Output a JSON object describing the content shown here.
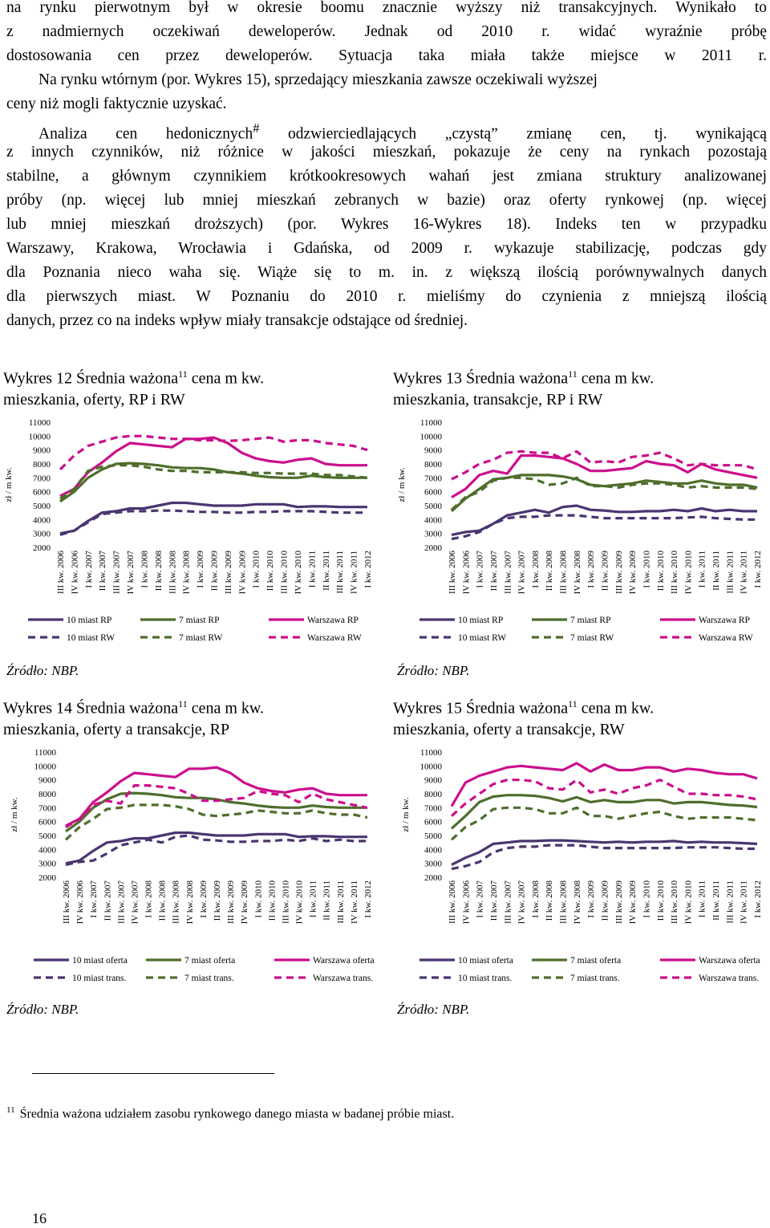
{
  "paragraph_1": {
    "lines": [
      "na rynku pierwotnym był w okresie boomu znacznie wyższy niż transakcyjnych. Wynikało to",
      "z nadmiernych oczekiwań deweloperów. Jednak od 2010 r. widać wyraźnie próbę",
      "dostosowania cen przez deweloperów. Sytuacja taka miała także miejsce w 2011 r.",
      "Na rynku wtórnym (por. Wykres 15), sprzedający mieszkania zawsze oczekiwali wyższej",
      "ceny niż mogli faktycznie uzyskać."
    ]
  },
  "paragraph_2": {
    "line1_a": "Analiza cen hedonicznych",
    "line1_sup": "#",
    "line1_b": " odzwierciedlających „czystą” zmianę cen, tj. wynikającą",
    "lines": [
      "z innych czynników, niż różnice w jakości mieszkań, pokazuje że ceny na rynkach pozostają",
      "stabilne, a głównym czynnikiem krótkookresowych wahań jest zmiana struktury analizowanej",
      "próby (np. więcej lub mniej mieszkań zebranych w bazie) oraz oferty rynkowej (np. więcej",
      "lub mniej mieszkań droższych) (por. Wykres 16-Wykres 18). Indeks ten w przypadku",
      "Warszawy, Krakowa, Wrocławia i Gdańska, od 2009 r. wykazuje stabilizację, podczas gdy",
      "dla Poznania nieco waha się. Wiąże się to m. in. z większą ilością porównywalnych danych",
      "dla pierwszych miast. W Poznaniu do 2010 r. mieliśmy do czynienia z mniejszą ilością",
      "danych, przez co na indeks wpływ miały transakcje odstające od średniej."
    ]
  },
  "footnote": {
    "number": "11",
    "text": "Średnia ważona udziałem zasobu rynkowego danego miasta w badanej próbie miast."
  },
  "page_number": "16",
  "colors": {
    "ten_cities": "#4a3570",
    "seven_cities": "#4e6e2c",
    "warszawa": "#cc0f8c"
  },
  "chart_data": [
    {
      "type": "line",
      "title_a": "Wykres 12 Średnia ważona",
      "title_sup": "11",
      "title_b": " cena m kw.",
      "title_line2": "mieszkania, oferty, RP i RW",
      "source": "Źródło: NBP.",
      "ylabel": "zł / m kw.",
      "ylim": [
        2000,
        11000
      ],
      "yticks": [
        2000,
        3000,
        4000,
        5000,
        6000,
        7000,
        8000,
        9000,
        10000,
        11000
      ],
      "categories": [
        "III kw. 2006",
        "IV kw. 2006",
        "I kw. 2007",
        "II kw. 2007",
        "III kw. 2007",
        "IV kw. 2007",
        "I kw. 2008",
        "II kw. 2008",
        "III kw. 2008",
        "IV kw. 2008",
        "I kw. 2009",
        "II kw. 2009",
        "III kw. 2009",
        "IV kw. 2009",
        "I kw. 2010",
        "II kw. 2010",
        "III kw. 2010",
        "IV kw. 2010",
        "I kw. 2011",
        "II kw. 2011",
        "III kw. 2011",
        "IV kw. 2011",
        "I kw. 2012"
      ],
      "series": [
        {
          "name": "10 miast RP",
          "color": "#4a3570",
          "dashed": false,
          "values": [
            3000,
            3200,
            3900,
            4500,
            4600,
            4800,
            4800,
            5000,
            5200,
            5200,
            5100,
            5000,
            5000,
            5000,
            5100,
            5100,
            5100,
            4900,
            4950,
            4950,
            4900,
            4900,
            4900
          ]
        },
        {
          "name": "7 miast RP",
          "color": "#4e6e2c",
          "dashed": false,
          "values": [
            5300,
            6000,
            7000,
            7600,
            8000,
            8050,
            8000,
            7900,
            7750,
            7700,
            7700,
            7600,
            7400,
            7300,
            7150,
            7050,
            7000,
            7000,
            7150,
            7050,
            7000,
            7000,
            7000
          ]
        },
        {
          "name": "Warszawa RP",
          "color": "#cc0f8c",
          "dashed": false,
          "values": [
            5700,
            6200,
            7400,
            8100,
            8900,
            9500,
            9400,
            9300,
            9200,
            9800,
            9800,
            9900,
            9500,
            8800,
            8400,
            8200,
            8100,
            8300,
            8400,
            8000,
            7900,
            7900,
            7900
          ]
        },
        {
          "name": "10 miast RW",
          "color": "#4a3570",
          "dashed": true,
          "values": [
            2900,
            3200,
            3800,
            4400,
            4500,
            4600,
            4600,
            4650,
            4650,
            4600,
            4550,
            4550,
            4500,
            4500,
            4550,
            4550,
            4600,
            4600,
            4600,
            4550,
            4500,
            4500,
            4500
          ]
        },
        {
          "name": "7 miast RW",
          "color": "#4e6e2c",
          "dashed": true,
          "values": [
            5500,
            6200,
            7500,
            7800,
            7900,
            7900,
            7800,
            7600,
            7500,
            7500,
            7400,
            7400,
            7400,
            7400,
            7350,
            7350,
            7300,
            7300,
            7300,
            7200,
            7200,
            7100,
            7000
          ]
        },
        {
          "name": "Warszawa RW",
          "color": "#cc0f8c",
          "dashed": true,
          "values": [
            7600,
            8600,
            9300,
            9600,
            9900,
            10000,
            10000,
            9900,
            9800,
            9800,
            9700,
            9700,
            9650,
            9700,
            9800,
            9900,
            9600,
            9700,
            9700,
            9500,
            9400,
            9300,
            9000
          ]
        }
      ]
    },
    {
      "type": "line",
      "title_a": "Wykres 13 Średnia ważona",
      "title_sup": "11",
      "title_b": " cena m kw.",
      "title_line2": "mieszkania, transakcje, RP i RW",
      "source": "Źródło: NBP.",
      "ylabel": "zł / m kw.",
      "ylim": [
        2000,
        11000
      ],
      "yticks": [
        2000,
        3000,
        4000,
        5000,
        6000,
        7000,
        8000,
        9000,
        10000,
        11000
      ],
      "categories": [
        "III kw. 2006",
        "IV kw. 2006",
        "I kw. 2007",
        "II kw. 2007",
        "III kw. 2007",
        "IV kw. 2007",
        "I kw. 2008",
        "II kw. 2008",
        "III kw. 2008",
        "IV kw. 2008",
        "I kw. 2009",
        "II kw. 2009",
        "III kw. 2009",
        "IV kw. 2009",
        "I kw. 2010",
        "II kw. 2010",
        "III kw. 2010",
        "IV kw. 2010",
        "I kw. 2011",
        "II kw. 2011",
        "III kw. 2011",
        "IV kw. 2011",
        "I kw. 2012"
      ],
      "series": [
        {
          "name": "10 miast RP",
          "color": "#4a3570",
          "dashed": false,
          "values": [
            2900,
            3100,
            3200,
            3700,
            4300,
            4500,
            4700,
            4500,
            4900,
            5000,
            4700,
            4650,
            4550,
            4550,
            4600,
            4600,
            4700,
            4600,
            4800,
            4600,
            4700,
            4600,
            4600
          ]
        },
        {
          "name": "7 miast RP",
          "color": "#4e6e2c",
          "dashed": false,
          "values": [
            4600,
            5500,
            6200,
            6900,
            7000,
            7200,
            7200,
            7200,
            7100,
            6900,
            6500,
            6400,
            6500,
            6600,
            6800,
            6700,
            6600,
            6600,
            6800,
            6600,
            6500,
            6500,
            6300
          ]
        },
        {
          "name": "Warszawa RP",
          "color": "#cc0f8c",
          "dashed": false,
          "values": [
            5600,
            6200,
            7200,
            7500,
            7300,
            8600,
            8600,
            8500,
            8400,
            8000,
            7500,
            7500,
            7600,
            7700,
            8200,
            8000,
            7900,
            7400,
            8000,
            7600,
            7400,
            7200,
            7000
          ]
        },
        {
          "name": "10 miast RW",
          "color": "#4a3570",
          "dashed": true,
          "values": [
            2600,
            2800,
            3100,
            3700,
            4100,
            4200,
            4200,
            4300,
            4300,
            4300,
            4200,
            4100,
            4100,
            4100,
            4100,
            4100,
            4100,
            4150,
            4200,
            4100,
            4050,
            4000,
            4000
          ]
        },
        {
          "name": "7 miast RW",
          "color": "#4e6e2c",
          "dashed": true,
          "values": [
            4700,
            5600,
            6000,
            6800,
            7000,
            7000,
            6900,
            6500,
            6600,
            7000,
            6400,
            6400,
            6300,
            6500,
            6600,
            6600,
            6500,
            6300,
            6400,
            6300,
            6300,
            6300,
            6200
          ]
        },
        {
          "name": "Warszawa RW",
          "color": "#cc0f8c",
          "dashed": true,
          "values": [
            6900,
            7400,
            8000,
            8300,
            8800,
            8900,
            8800,
            8800,
            8400,
            8900,
            8100,
            8200,
            8100,
            8500,
            8600,
            8800,
            8400,
            7900,
            8000,
            7900,
            7900,
            7900,
            7600
          ]
        }
      ]
    },
    {
      "type": "line",
      "title_a": "Wykres 14 Średnia ważona",
      "title_sup": "11",
      "title_b": " cena m kw.",
      "title_line2": "mieszkania, oferty a transakcje, RP",
      "source": "Źródło: NBP.",
      "ylabel": "zł / m kw.",
      "ylim": [
        2000,
        11000
      ],
      "yticks": [
        2000,
        3000,
        4000,
        5000,
        6000,
        7000,
        8000,
        9000,
        10000,
        11000
      ],
      "categories": [
        "III kw. 2006",
        "IV kw. 2006",
        "I kw. 2007",
        "II kw. 2007",
        "III kw. 2007",
        "IV kw. 2007",
        "I kw. 2008",
        "II kw. 2008",
        "III kw. 2008",
        "IV kw. 2008",
        "I kw. 2009",
        "II kw. 2009",
        "III kw. 2009",
        "IV kw. 2009",
        "I kw. 2010",
        "II kw. 2010",
        "III kw. 2010",
        "IV kw. 2010",
        "I kw. 2011",
        "II kw. 2011",
        "III kw. 2011",
        "IV kw. 2011",
        "I kw. 2012"
      ],
      "series": [
        {
          "name": "10 miast oferta",
          "color": "#4a3570",
          "dashed": false,
          "values": [
            3000,
            3200,
            3900,
            4500,
            4600,
            4800,
            4800,
            5000,
            5200,
            5200,
            5100,
            5000,
            5000,
            5000,
            5100,
            5100,
            5100,
            4900,
            4950,
            4950,
            4900,
            4900,
            4900
          ]
        },
        {
          "name": "7 miast oferta",
          "color": "#4e6e2c",
          "dashed": false,
          "values": [
            5300,
            6000,
            7000,
            7600,
            8000,
            8050,
            8000,
            7900,
            7750,
            7700,
            7700,
            7600,
            7400,
            7300,
            7150,
            7050,
            7000,
            7000,
            7150,
            7050,
            7000,
            7000,
            7000
          ]
        },
        {
          "name": "Warszawa oferta",
          "color": "#cc0f8c",
          "dashed": false,
          "values": [
            5700,
            6200,
            7400,
            8100,
            8900,
            9500,
            9400,
            9300,
            9200,
            9800,
            9800,
            9900,
            9500,
            8800,
            8400,
            8200,
            8100,
            8300,
            8400,
            8000,
            7900,
            7900,
            7900
          ]
        },
        {
          "name": "10 miast trans.",
          "color": "#4a3570",
          "dashed": true,
          "values": [
            2900,
            3100,
            3200,
            3700,
            4300,
            4500,
            4700,
            4500,
            4900,
            5000,
            4700,
            4650,
            4550,
            4550,
            4600,
            4600,
            4700,
            4600,
            4800,
            4600,
            4700,
            4600,
            4600
          ]
        },
        {
          "name": "7 miast trans.",
          "color": "#4e6e2c",
          "dashed": true,
          "values": [
            4700,
            5600,
            6200,
            6900,
            7000,
            7200,
            7200,
            7200,
            7100,
            6900,
            6500,
            6400,
            6500,
            6600,
            6800,
            6700,
            6600,
            6600,
            6800,
            6600,
            6500,
            6500,
            6300
          ]
        },
        {
          "name": "Warszawa trans.",
          "color": "#cc0f8c",
          "dashed": true,
          "values": [
            5600,
            6200,
            7200,
            7500,
            7300,
            8600,
            8600,
            8500,
            8400,
            8000,
            7500,
            7500,
            7600,
            7700,
            8200,
            8000,
            7900,
            7400,
            8000,
            7600,
            7400,
            7200,
            7000
          ]
        }
      ]
    },
    {
      "type": "line",
      "title_a": "Wykres 15 Średnia ważona",
      "title_sup": "11",
      "title_b": " cena m kw.",
      "title_line2": "mieszkania, oferty a transakcje, RW",
      "source": "Źródło: NBP.",
      "ylabel": "zł / m kw.",
      "ylim": [
        2000,
        11000
      ],
      "yticks": [
        2000,
        3000,
        4000,
        5000,
        6000,
        7000,
        8000,
        9000,
        10000,
        11000
      ],
      "categories": [
        "III kw. 2006",
        "IV kw. 2006",
        "I kw. 2007",
        "II kw. 2007",
        "III kw. 2007",
        "IV kw. 2007",
        "I kw. 2008",
        "II kw. 2008",
        "III kw. 2008",
        "IV kw. 2008",
        "I kw. 2009",
        "II kw. 2009",
        "III kw. 2009",
        "IV kw. 2009",
        "I kw. 2010",
        "II kw. 2010",
        "III kw. 2010",
        "IV kw. 2010",
        "I kw. 2011",
        "II kw. 2011",
        "III kw. 2011",
        "IV kw. 2011",
        "I kw. 2012"
      ],
      "series": [
        {
          "name": "10 miast oferta",
          "color": "#4a3570",
          "dashed": false,
          "values": [
            2900,
            3400,
            3800,
            4400,
            4500,
            4600,
            4600,
            4650,
            4650,
            4600,
            4550,
            4500,
            4550,
            4500,
            4550,
            4550,
            4600,
            4500,
            4550,
            4500,
            4500,
            4450,
            4400
          ]
        },
        {
          "name": "7 miast oferta",
          "color": "#4e6e2c",
          "dashed": false,
          "values": [
            5500,
            6400,
            7400,
            7800,
            7900,
            7900,
            7850,
            7700,
            7450,
            7750,
            7400,
            7550,
            7400,
            7400,
            7550,
            7550,
            7300,
            7400,
            7400,
            7300,
            7200,
            7150,
            7050
          ]
        },
        {
          "name": "Warszawa oferta",
          "color": "#cc0f8c",
          "dashed": false,
          "values": [
            7100,
            8800,
            9300,
            9600,
            9900,
            10000,
            9900,
            9800,
            9700,
            10200,
            9600,
            10100,
            9700,
            9700,
            9900,
            9900,
            9600,
            9800,
            9700,
            9500,
            9400,
            9400,
            9100
          ]
        },
        {
          "name": "10 miast trans.",
          "color": "#4a3570",
          "dashed": true,
          "values": [
            2600,
            2800,
            3100,
            3800,
            4100,
            4200,
            4200,
            4300,
            4300,
            4300,
            4200,
            4100,
            4100,
            4100,
            4100,
            4100,
            4100,
            4150,
            4150,
            4150,
            4100,
            4050,
            4050
          ]
        },
        {
          "name": "7 miast trans.",
          "color": "#4e6e2c",
          "dashed": true,
          "values": [
            4700,
            5600,
            6100,
            6900,
            7000,
            7000,
            6900,
            6600,
            6600,
            7000,
            6400,
            6400,
            6200,
            6400,
            6600,
            6700,
            6400,
            6200,
            6300,
            6300,
            6300,
            6200,
            6100
          ]
        },
        {
          "name": "Warszawa trans.",
          "color": "#cc0f8c",
          "dashed": true,
          "values": [
            6400,
            7300,
            8000,
            8700,
            9000,
            9000,
            8900,
            8400,
            8300,
            9000,
            8100,
            8300,
            8000,
            8400,
            8600,
            9000,
            8500,
            8000,
            8000,
            7900,
            7900,
            7800,
            7600
          ]
        }
      ]
    }
  ]
}
